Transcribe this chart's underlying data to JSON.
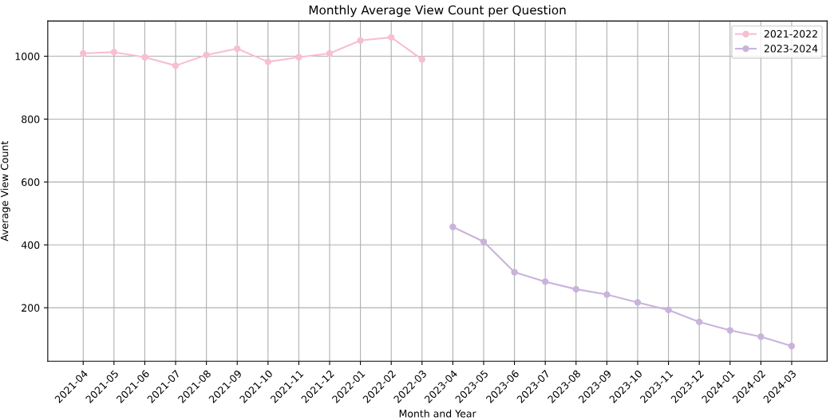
{
  "chart_data": {
    "type": "line",
    "title": "Monthly Average View Count per Question",
    "xlabel": "Month and Year",
    "ylabel": "Average View Count",
    "categories": [
      "2021-04",
      "2021-05",
      "2021-06",
      "2021-07",
      "2021-08",
      "2021-09",
      "2021-10",
      "2021-11",
      "2021-12",
      "2022-01",
      "2022-02",
      "2022-03",
      "2023-04",
      "2023-05",
      "2023-06",
      "2023-07",
      "2023-08",
      "2023-09",
      "2023-10",
      "2023-11",
      "2023-12",
      "2024-01",
      "2024-02",
      "2024-03"
    ],
    "series": [
      {
        "name": "2021-2022",
        "color": "#f7bfd2",
        "values": [
          1009,
          1013,
          997,
          970,
          1004,
          1024,
          982,
          997,
          1009,
          1050,
          1060,
          990,
          null,
          null,
          null,
          null,
          null,
          null,
          null,
          null,
          null,
          null,
          null,
          null
        ]
      },
      {
        "name": "2023-2024",
        "color": "#c9b3dc",
        "values": [
          null,
          null,
          null,
          null,
          null,
          null,
          null,
          null,
          null,
          null,
          null,
          null,
          457,
          410,
          313,
          283,
          259,
          242,
          217,
          193,
          155,
          128,
          108,
          78
        ]
      }
    ],
    "ylim": [
      30,
      1112
    ],
    "yticks": [
      200,
      400,
      600,
      800,
      1000
    ],
    "grid": true,
    "legend": "top right",
    "marker": "circle",
    "line_style": "solid"
  }
}
